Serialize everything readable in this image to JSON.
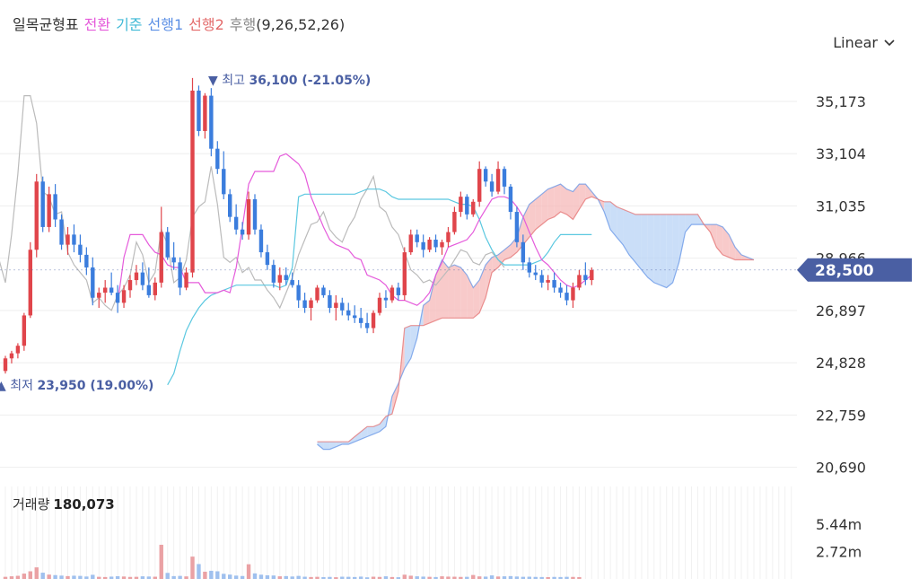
{
  "legend": {
    "title": "일목균형표",
    "tenkan": "전환",
    "kijun": "기준",
    "senkou1": "선행1",
    "senkou2": "선행2",
    "chikou": "후행",
    "params": "(9,26,52,26)"
  },
  "scale_mode": "Linear",
  "colors": {
    "up": "#e0454b",
    "down": "#3b7ddd",
    "tenkan": "#e55bdb",
    "kijun": "#5bc8e0",
    "senkou1": "#5b8fe5",
    "senkou2": "#e36a6a",
    "chikou": "#bbbbbb",
    "cloud_bull": "#f5b8b8",
    "cloud_bear": "#b8d3f5",
    "price_tag": "#4a5fa3"
  },
  "annotations": {
    "high_label": "▼ 최고",
    "high_value": "36,100 (-21.05%)",
    "low_label": "▲ 최저",
    "low_value": "23,950 (19.00%)"
  },
  "current_price_label": "28,500",
  "volume": {
    "label": "거래량",
    "value": "180,073",
    "ticks": [
      "5.44m",
      "2.72m"
    ]
  },
  "chart_data": {
    "type": "candlestick",
    "y_ticks": [
      "35,173",
      "33,104",
      "31,035",
      "28,966",
      "26,897",
      "24,828",
      "22,759",
      "20,690"
    ],
    "ylim": [
      20000,
      36700
    ],
    "current_price": 28500,
    "high": 36100,
    "low": 23950,
    "ohlc": [
      [
        24500,
        25100,
        24400,
        25000
      ],
      [
        25000,
        25300,
        24800,
        25200
      ],
      [
        25200,
        25600,
        25000,
        25500
      ],
      [
        25500,
        26800,
        25300,
        26700
      ],
      [
        26700,
        29600,
        26600,
        29300
      ],
      [
        29300,
        32300,
        29000,
        32000
      ],
      [
        32000,
        32200,
        30000,
        30200
      ],
      [
        30200,
        31800,
        30000,
        31500
      ],
      [
        31500,
        31900,
        30200,
        30500
      ],
      [
        30500,
        30700,
        29300,
        29500
      ],
      [
        29500,
        30200,
        29100,
        29900
      ],
      [
        29900,
        30300,
        29200,
        29500
      ],
      [
        29500,
        29900,
        28800,
        29100
      ],
      [
        29100,
        29400,
        28300,
        28600
      ],
      [
        28600,
        29000,
        27100,
        27400
      ],
      [
        27400,
        27800,
        27000,
        27600
      ],
      [
        27600,
        28100,
        27200,
        27800
      ],
      [
        27800,
        28400,
        27500,
        27600
      ],
      [
        27600,
        27900,
        26800,
        27200
      ],
      [
        27200,
        27900,
        27000,
        27700
      ],
      [
        27700,
        28300,
        27400,
        28100
      ],
      [
        28100,
        28700,
        27900,
        28400
      ],
      [
        28400,
        28800,
        27700,
        27900
      ],
      [
        27900,
        28600,
        27400,
        27500
      ],
      [
        27500,
        28200,
        27300,
        28000
      ],
      [
        28000,
        31000,
        27800,
        30000
      ],
      [
        30000,
        30200,
        28900,
        29000
      ],
      [
        29000,
        29600,
        28500,
        28800
      ],
      [
        28800,
        29000,
        27500,
        27800
      ],
      [
        27800,
        28600,
        27700,
        28400
      ],
      [
        28400,
        36100,
        28200,
        35600
      ],
      [
        35600,
        35800,
        33800,
        34000
      ],
      [
        34000,
        35500,
        33700,
        35400
      ],
      [
        35400,
        35700,
        33000,
        33300
      ],
      [
        33300,
        33600,
        32300,
        32500
      ],
      [
        32500,
        33200,
        31300,
        31500
      ],
      [
        31500,
        31700,
        30400,
        30600
      ],
      [
        30600,
        31100,
        29900,
        30100
      ],
      [
        30100,
        30400,
        29700,
        29900
      ],
      [
        29900,
        31600,
        29700,
        31300
      ],
      [
        31300,
        31500,
        29900,
        30100
      ],
      [
        30100,
        30300,
        29000,
        29200
      ],
      [
        29200,
        29500,
        28500,
        28700
      ],
      [
        28700,
        28900,
        27800,
        28000
      ],
      [
        28000,
        28600,
        27700,
        28300
      ],
      [
        28300,
        28600,
        27900,
        28100
      ],
      [
        28100,
        28400,
        27800,
        27900
      ],
      [
        27900,
        28100,
        27000,
        27300
      ],
      [
        27300,
        27600,
        26800,
        27000
      ],
      [
        27000,
        27400,
        26500,
        27300
      ],
      [
        27300,
        27900,
        27200,
        27800
      ],
      [
        27800,
        27900,
        27400,
        27500
      ],
      [
        27500,
        27700,
        26800,
        27000
      ],
      [
        27000,
        27500,
        26500,
        27200
      ],
      [
        27200,
        27400,
        26700,
        26900
      ],
      [
        26900,
        27200,
        26500,
        26700
      ],
      [
        26700,
        27100,
        26400,
        26600
      ],
      [
        26600,
        27000,
        26200,
        26400
      ],
      [
        26400,
        26800,
        26000,
        26200
      ],
      [
        26200,
        26900,
        26000,
        26800
      ],
      [
        26800,
        27600,
        26700,
        27400
      ],
      [
        27400,
        27700,
        27000,
        27300
      ],
      [
        27300,
        27900,
        27200,
        27800
      ],
      [
        27800,
        28000,
        27300,
        27500
      ],
      [
        27500,
        29400,
        27300,
        29200
      ],
      [
        29200,
        30100,
        29100,
        29900
      ],
      [
        29900,
        30100,
        29400,
        29600
      ],
      [
        29600,
        29900,
        29000,
        29300
      ],
      [
        29300,
        29800,
        29200,
        29700
      ],
      [
        29700,
        29900,
        29200,
        29400
      ],
      [
        29400,
        29700,
        29100,
        29600
      ],
      [
        29600,
        30200,
        29400,
        30000
      ],
      [
        30000,
        31000,
        29900,
        30800
      ],
      [
        30800,
        31600,
        30600,
        31400
      ],
      [
        31400,
        31500,
        30500,
        30700
      ],
      [
        30700,
        31300,
        30600,
        31200
      ],
      [
        31200,
        32800,
        31000,
        32500
      ],
      [
        32500,
        32600,
        31800,
        32000
      ],
      [
        32000,
        32300,
        31400,
        31600
      ],
      [
        31600,
        32800,
        31500,
        32500
      ],
      [
        32500,
        32600,
        31500,
        31800
      ],
      [
        31800,
        31900,
        30500,
        30800
      ],
      [
        30800,
        31000,
        29400,
        29600
      ],
      [
        29600,
        29900,
        28500,
        28800
      ],
      [
        28800,
        29000,
        28200,
        28400
      ],
      [
        28400,
        28700,
        28100,
        28300
      ],
      [
        28300,
        28500,
        27800,
        28000
      ],
      [
        28000,
        28300,
        27700,
        28100
      ],
      [
        28100,
        28400,
        27600,
        27800
      ],
      [
        27800,
        28000,
        27400,
        27600
      ],
      [
        27600,
        27900,
        27100,
        27300
      ],
      [
        27300,
        28000,
        27000,
        27800
      ],
      [
        27800,
        28500,
        27700,
        28300
      ],
      [
        28300,
        28800,
        27900,
        28100
      ],
      [
        28100,
        28600,
        27900,
        28500
      ]
    ],
    "tenkan": [
      27200,
      29000,
      29900,
      29900,
      29900,
      29500,
      29200,
      29100,
      28700,
      28600,
      28600,
      28000,
      28000,
      28000,
      27600,
      27600,
      27600,
      27700,
      27600,
      28600,
      30200,
      31900,
      32400,
      32400,
      32400,
      32400,
      33000,
      33100,
      32900,
      32700,
      32300,
      31400,
      30800,
      30200,
      29700,
      29500,
      29400,
      29300,
      29000,
      28900,
      28300,
      28200,
      28100,
      27900,
      27500,
      27300,
      27300,
      27200,
      27100,
      27300,
      27600,
      28300,
      28800,
      29400,
      29500,
      29600,
      29700,
      30000,
      30500,
      30900,
      31300,
      31400,
      31400,
      31300,
      31000,
      30600,
      30000,
      29400,
      28900,
      28700,
      28400,
      28100,
      27900,
      27800,
      27900,
      28100,
      28300
    ],
    "kijun": [
      23950,
      24400,
      25300,
      26100,
      26600,
      27000,
      27300,
      27500,
      27600,
      27700,
      27800,
      27900,
      27900,
      27900,
      27900,
      27900,
      27900,
      27900,
      27800,
      27900,
      28600,
      31400,
      31500,
      31500,
      31500,
      31500,
      31500,
      31500,
      31500,
      31500,
      31500,
      31600,
      31700,
      31700,
      31700,
      31600,
      31400,
      31300,
      31300,
      31300,
      31300,
      31300,
      31300,
      31300,
      31300,
      31300,
      31200,
      31100,
      31100,
      31000,
      30500,
      29800,
      29300,
      28900,
      28700,
      28700,
      28700,
      28700,
      28700,
      28800,
      28900,
      29200,
      29600,
      29900,
      29900,
      29900,
      29900,
      29900,
      29900
    ],
    "senkou1": [
      21600,
      21400,
      21400,
      21500,
      21600,
      21600,
      21700,
      21800,
      21900,
      22000,
      22100,
      22300,
      23500,
      24000,
      24600,
      25000,
      25800,
      27100,
      27300,
      28300,
      28900,
      28600,
      28700,
      28600,
      28300,
      27800,
      28100,
      28700,
      29000,
      29100,
      29300,
      29500,
      29800,
      30600,
      31100,
      31300,
      31500,
      31700,
      31800,
      31900,
      31700,
      31600,
      31900,
      31900,
      31600,
      31300,
      30800,
      30100,
      29800,
      29500,
      29100,
      28800,
      28500,
      28200,
      28000,
      27900,
      27800,
      28000,
      28800,
      30000,
      30300,
      30300,
      30300,
      30300,
      30300,
      30200,
      29900,
      29400,
      29100,
      29000,
      28900
    ],
    "senkou2": [
      21700,
      21700,
      21700,
      21700,
      21700,
      21700,
      21900,
      22100,
      22300,
      22300,
      22400,
      22700,
      22800,
      23700,
      26200,
      26300,
      26300,
      26300,
      26400,
      26500,
      26600,
      26600,
      26600,
      26600,
      26600,
      26600,
      26800,
      27400,
      28400,
      28600,
      28900,
      29000,
      29200,
      29500,
      29800,
      30100,
      30300,
      30500,
      30600,
      30800,
      30700,
      30500,
      30900,
      31300,
      31400,
      31300,
      31200,
      31200,
      31000,
      30900,
      30800,
      30700,
      30700,
      30700,
      30700,
      30700,
      30700,
      30700,
      30700,
      30700,
      30700,
      30700,
      30300,
      30000,
      29400,
      29100,
      29000,
      28900,
      28900,
      28900,
      28900
    ],
    "chikou": [
      30000,
      28900,
      28000,
      29900,
      32300,
      35400,
      35400,
      34300,
      31600,
      31400,
      30700,
      30800,
      29200,
      28700,
      28400,
      28100,
      27200,
      27400,
      27100,
      26900,
      27500,
      27800,
      28300,
      29600,
      29100,
      28000,
      28400,
      30100,
      29500,
      28000,
      28200,
      28900,
      30600,
      31000,
      31200,
      32600,
      31100,
      29000,
      28800,
      29000,
      28400,
      28600,
      28100,
      28100,
      27700,
      27400,
      27000,
      27600,
      28200,
      29100,
      29700,
      30300,
      30400,
      30800,
      30100,
      29800,
      29600,
      30200,
      30600,
      31300,
      31700,
      32200,
      31000,
      30800,
      30200,
      29900,
      29200,
      28500,
      28300,
      28000,
      28100,
      27900,
      28200,
      28500,
      28900,
      29300,
      29200,
      28800,
      28700,
      29100,
      29200,
      28900,
      28600
    ],
    "volume_ticks": [
      5440000,
      2720000
    ],
    "volume": [
      210000,
      260000,
      310000,
      530000,
      760000,
      1150000,
      620000,
      430000,
      380000,
      330000,
      280000,
      320000,
      300000,
      240000,
      410000,
      210000,
      190000,
      230000,
      270000,
      240000,
      200000,
      210000,
      260000,
      240000,
      220000,
      3400000,
      600000,
      280000,
      300000,
      250000,
      2220000,
      1480000,
      720000,
      810000,
      760000,
      510000,
      430000,
      330000,
      290000,
      1460000,
      550000,
      420000,
      360000,
      340000,
      260000,
      280000,
      240000,
      300000,
      220000,
      190000,
      210000,
      180000,
      200000,
      170000,
      220000,
      210000,
      190000,
      230000,
      160000,
      220000,
      200000,
      260000,
      190000,
      170000,
      420000,
      320000,
      260000,
      230000,
      210000,
      190000,
      260000,
      230000,
      220000,
      200000,
      210000,
      390000,
      250000,
      230000,
      350000,
      240000,
      260000,
      280000,
      240000,
      210000,
      220000,
      200000,
      190000,
      180000,
      200000,
      190000,
      210000,
      200000,
      180073
    ]
  }
}
